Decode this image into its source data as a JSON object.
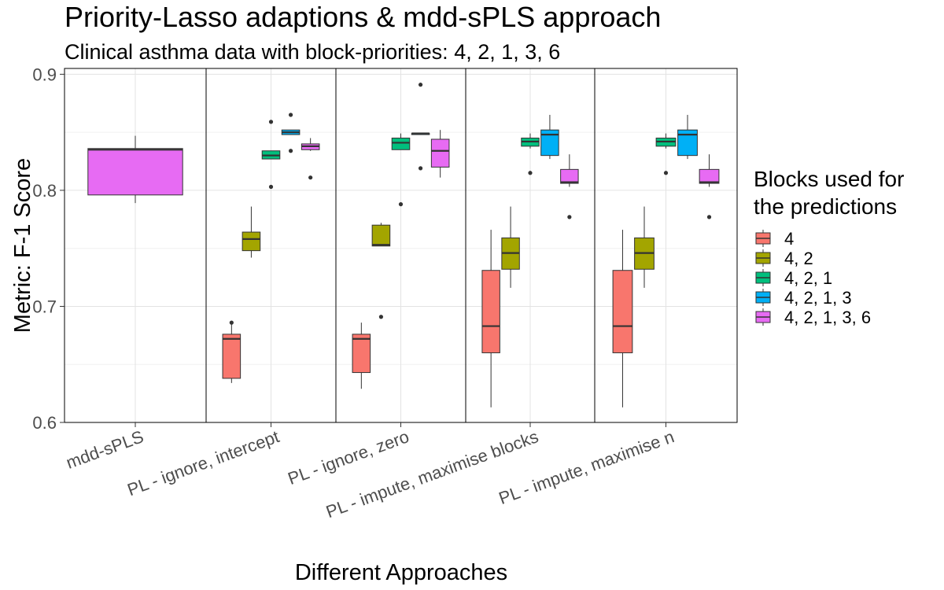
{
  "chart_data": {
    "type": "boxplot",
    "title": "Priority-Lasso adaptions & mdd-sPLS approach",
    "subtitle": "Clinical asthma data with block-priorities: 4, 2, 1, 3, 6",
    "xlabel": "Different Approaches",
    "ylabel": "Metric: F-1 Score",
    "ylim": [
      0.6,
      0.905
    ],
    "yticks": [
      "0.6",
      "0.7",
      "0.8",
      "0.9"
    ],
    "grid": true,
    "legend": {
      "title": [
        "Blocks used for",
        "the predictions"
      ],
      "position": "right"
    },
    "series": [
      {
        "name": "4",
        "color": "#F8766D"
      },
      {
        "name": "4, 2",
        "color": "#A3A500"
      },
      {
        "name": "4, 2, 1",
        "color": "#00BF7D"
      },
      {
        "name": "4, 2, 1, 3",
        "color": "#00B0F6"
      },
      {
        "name": "4, 2, 1, 3, 6",
        "color": "#E76BF3"
      }
    ],
    "categories": [
      {
        "label": "mdd-sPLS",
        "boxes": [
          {
            "series": 4,
            "min": 0.789,
            "q1": 0.796,
            "median": 0.835,
            "q3": 0.836,
            "max": 0.847,
            "outliers": []
          }
        ]
      },
      {
        "label": "PL - ignore, intercept",
        "boxes": [
          {
            "series": 0,
            "min": 0.634,
            "q1": 0.638,
            "median": 0.672,
            "q3": 0.676,
            "max": 0.686,
            "outliers": [
              0.686
            ]
          },
          {
            "series": 1,
            "min": 0.742,
            "q1": 0.748,
            "median": 0.758,
            "q3": 0.764,
            "max": 0.786,
            "outliers": []
          },
          {
            "series": 2,
            "min": 0.827,
            "q1": 0.827,
            "median": 0.83,
            "q3": 0.834,
            "max": 0.834,
            "outliers": [
              0.803,
              0.859
            ]
          },
          {
            "series": 3,
            "min": 0.848,
            "q1": 0.848,
            "median": 0.85,
            "q3": 0.852,
            "max": 0.852,
            "outliers": [
              0.834,
              0.865
            ]
          },
          {
            "series": 4,
            "min": 0.834,
            "q1": 0.835,
            "median": 0.838,
            "q3": 0.84,
            "max": 0.845,
            "outliers": [
              0.811
            ]
          }
        ]
      },
      {
        "label": "PL - ignore, zero",
        "boxes": [
          {
            "series": 0,
            "min": 0.629,
            "q1": 0.643,
            "median": 0.672,
            "q3": 0.676,
            "max": 0.686,
            "outliers": []
          },
          {
            "series": 1,
            "min": 0.752,
            "q1": 0.752,
            "median": 0.753,
            "q3": 0.77,
            "max": 0.772,
            "outliers": [
              0.691
            ]
          },
          {
            "series": 2,
            "min": 0.835,
            "q1": 0.835,
            "median": 0.841,
            "q3": 0.845,
            "max": 0.849,
            "outliers": [
              0.788
            ]
          },
          {
            "series": 3,
            "min": 0.848,
            "q1": 0.848,
            "median": 0.849,
            "q3": 0.849,
            "max": 0.849,
            "outliers": [
              0.819,
              0.891
            ]
          },
          {
            "series": 4,
            "min": 0.811,
            "q1": 0.82,
            "median": 0.834,
            "q3": 0.844,
            "max": 0.852,
            "outliers": []
          }
        ]
      },
      {
        "label": "PL - impute, maximise blocks",
        "boxes": [
          {
            "series": 0,
            "min": 0.613,
            "q1": 0.66,
            "median": 0.683,
            "q3": 0.731,
            "max": 0.766,
            "outliers": []
          },
          {
            "series": 1,
            "min": 0.716,
            "q1": 0.732,
            "median": 0.746,
            "q3": 0.759,
            "max": 0.786,
            "outliers": []
          },
          {
            "series": 2,
            "min": 0.836,
            "q1": 0.838,
            "median": 0.842,
            "q3": 0.845,
            "max": 0.849,
            "outliers": [
              0.815
            ]
          },
          {
            "series": 3,
            "min": 0.827,
            "q1": 0.83,
            "median": 0.848,
            "q3": 0.852,
            "max": 0.865,
            "outliers": []
          },
          {
            "series": 4,
            "min": 0.803,
            "q1": 0.806,
            "median": 0.807,
            "q3": 0.818,
            "max": 0.831,
            "outliers": [
              0.777
            ]
          }
        ]
      },
      {
        "label": "PL - impute, maximise n",
        "boxes": [
          {
            "series": 0,
            "min": 0.613,
            "q1": 0.66,
            "median": 0.683,
            "q3": 0.731,
            "max": 0.766,
            "outliers": []
          },
          {
            "series": 1,
            "min": 0.716,
            "q1": 0.732,
            "median": 0.746,
            "q3": 0.759,
            "max": 0.786,
            "outliers": []
          },
          {
            "series": 2,
            "min": 0.836,
            "q1": 0.838,
            "median": 0.842,
            "q3": 0.845,
            "max": 0.849,
            "outliers": [
              0.815
            ]
          },
          {
            "series": 3,
            "min": 0.827,
            "q1": 0.83,
            "median": 0.848,
            "q3": 0.852,
            "max": 0.865,
            "outliers": []
          },
          {
            "series": 4,
            "min": 0.803,
            "q1": 0.806,
            "median": 0.807,
            "q3": 0.818,
            "max": 0.831,
            "outliers": [
              0.777
            ]
          }
        ]
      }
    ]
  }
}
